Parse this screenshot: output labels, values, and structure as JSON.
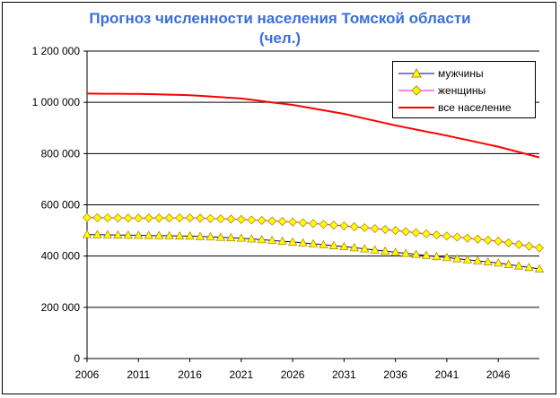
{
  "chart_data": {
    "type": "line",
    "title": "Прогноз численности населения Томской области (чел.)",
    "title_lines": [
      "Прогноз численности населения Томской области",
      "(чел.)"
    ],
    "xlabel": "",
    "ylabel": "",
    "x_range": [
      2006,
      2050
    ],
    "x_ticks": [
      2006,
      2011,
      2016,
      2021,
      2026,
      2031,
      2036,
      2041,
      2046
    ],
    "x_tick_labels": [
      "2006",
      "2011",
      "2016",
      "2021",
      "2026",
      "2031",
      "2036",
      "2041",
      "2046"
    ],
    "ylim": [
      0,
      1200000
    ],
    "y_ticks": [
      0,
      200000,
      400000,
      600000,
      800000,
      1000000,
      1200000
    ],
    "y_tick_labels": [
      "0",
      "200 000",
      "400 000",
      "600 000",
      "800 000",
      "1 000 000",
      "1 200 000"
    ],
    "grid": "horizontal",
    "legend": "top-right",
    "x": [
      2006,
      2011,
      2016,
      2021,
      2026,
      2031,
      2036,
      2041,
      2046,
      2050
    ],
    "series": [
      {
        "name": "мужчины",
        "color": "#000080",
        "marker": "triangle",
        "marker_fill": "#ffff00",
        "marker_stroke": "#b8860b",
        "values": [
          484000,
          481000,
          478000,
          470000,
          455000,
          437000,
          415000,
          394000,
          373000,
          350000
        ]
      },
      {
        "name": "женщины",
        "color": "#ff00ff",
        "marker": "diamond",
        "marker_fill": "#ffff00",
        "marker_stroke": "#b8860b",
        "values": [
          550000,
          548000,
          549000,
          543000,
          533000,
          518000,
          500000,
          478000,
          458000,
          432000
        ]
      },
      {
        "name": "все население",
        "color": "#ff0000",
        "marker": "none",
        "values": [
          1034000,
          1033000,
          1028000,
          1015000,
          990000,
          955000,
          910000,
          870000,
          827000,
          785000
        ]
      }
    ]
  }
}
